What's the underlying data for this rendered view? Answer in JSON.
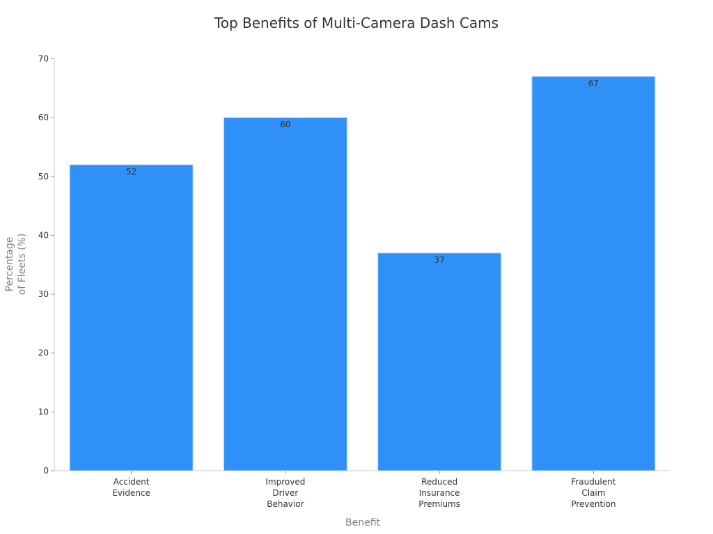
{
  "chart_data": {
    "type": "bar",
    "title": "Top Benefits of Multi-Camera Dash Cams",
    "xlabel": "Benefit",
    "ylabel": [
      "Percentage",
      "of Fleets (%)"
    ],
    "categories": [
      [
        "Accident",
        "Evidence"
      ],
      [
        "Improved",
        "Driver",
        "Behavior"
      ],
      [
        "Reduced",
        "Insurance",
        "Premiums"
      ],
      [
        "Fraudulent",
        "Claim",
        "Prevention"
      ]
    ],
    "values": [
      52,
      60,
      37,
      67
    ],
    "data_labels": [
      "52",
      "60",
      "37",
      "67"
    ],
    "ylim": [
      0,
      70
    ],
    "yticks": [
      0,
      10,
      20,
      30,
      40,
      50,
      60,
      70
    ],
    "grid": false,
    "legend": "none",
    "colors": {
      "bar": "#2f91f8",
      "bar_edge": "#c9d9ec"
    }
  }
}
